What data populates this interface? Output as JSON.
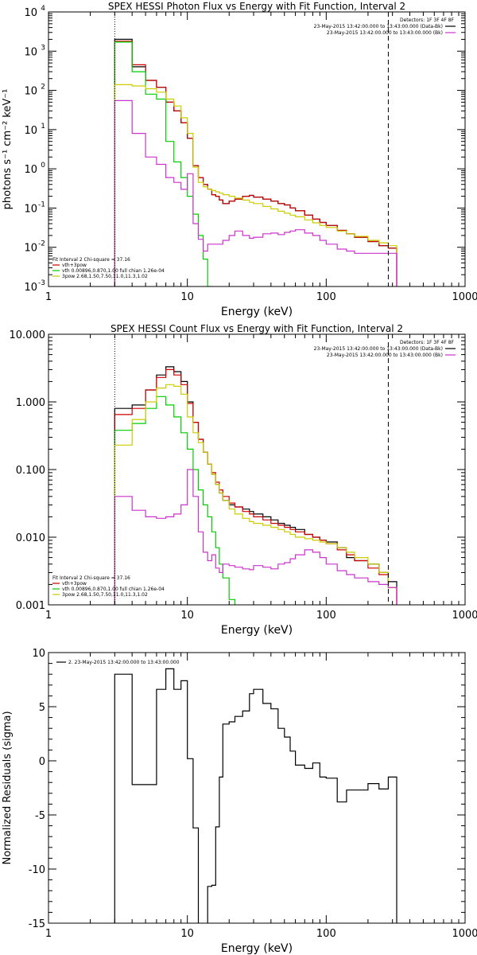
{
  "chart_data": [
    {
      "type": "line",
      "title": "SPEX HESSI Photon Flux vs Energy with Fit Function, Interval 2",
      "xlabel": "Energy (keV)",
      "ylabel": "photons s⁻¹ cm⁻² keV⁻¹",
      "xscale": "log",
      "yscale": "log",
      "xlim": [
        1,
        1000
      ],
      "ylim": [
        0.001,
        10000
      ],
      "xticks": [
        {
          "v": 1,
          "label": "1"
        },
        {
          "v": 10,
          "label": "10"
        },
        {
          "v": 100,
          "label": "100"
        },
        {
          "v": 1000,
          "label": "1000"
        }
      ],
      "yticks": [
        {
          "v": 0.001,
          "label": "10",
          "sup": "-3"
        },
        {
          "v": 0.01,
          "label": "10",
          "sup": "-2"
        },
        {
          "v": 0.1,
          "label": "10",
          "sup": "-1"
        },
        {
          "v": 1,
          "label": "10",
          "sup": "0"
        },
        {
          "v": 10,
          "label": "10",
          "sup": "1"
        },
        {
          "v": 100,
          "label": "10",
          "sup": "2"
        },
        {
          "v": 1000,
          "label": "10",
          "sup": "3"
        },
        {
          "v": 10000,
          "label": "10",
          "sup": "4"
        }
      ],
      "vlines": [
        {
          "x": 3,
          "style": "dotted"
        },
        {
          "x": 280,
          "style": "dashed"
        }
      ],
      "legend_top": {
        "header": "Detectors: 1F 3F 4F 8F",
        "entries": [
          {
            "text": "23-May-2015 13:42:00.000 to 13:43:00.000 (Data-Bk)",
            "color": "#000000"
          },
          {
            "text": "23-May-2015 13:42:00.000 to 13:43:00.000 (Bk)",
            "color": "#cc33cc"
          }
        ]
      },
      "legend_bottom": {
        "header": "Fit Interval 2   Chi-square = 37.16",
        "entries": [
          {
            "text": "vth+3pow",
            "color": "#cc0000"
          },
          {
            "text": "vth 0.00896,0.870,1.00  full chian 1.26e-04",
            "color": "#00cc00"
          },
          {
            "text": "3pow 2.68,1.50,7.50,11.0,11.3,1.02",
            "color": "#cccc00"
          }
        ]
      },
      "series": [
        {
          "color": "#000000",
          "x": [
            3,
            4,
            5,
            6,
            7,
            8,
            9,
            10,
            11,
            12,
            13,
            14,
            15,
            16,
            17,
            18,
            20,
            22,
            25,
            28,
            30,
            35,
            40,
            45,
            50,
            55,
            60,
            70,
            80,
            90,
            100,
            120,
            140,
            160,
            200,
            240,
            280
          ],
          "y": [
            2000,
            400,
            180,
            120,
            50,
            30,
            15,
            6,
            1.2,
            0.6,
            0.4,
            0.3,
            0.22,
            0.2,
            0.16,
            0.13,
            0.15,
            0.17,
            0.2,
            0.21,
            0.19,
            0.17,
            0.15,
            0.13,
            0.12,
            0.1,
            0.085,
            0.066,
            0.052,
            0.043,
            0.036,
            0.027,
            0.022,
            0.018,
            0.014,
            0.011,
            0.0095
          ]
        },
        {
          "color": "#cc0000",
          "x": [
            3,
            4,
            5,
            6,
            7,
            8,
            9,
            10,
            11,
            12,
            13,
            14,
            15,
            16,
            17,
            18,
            20,
            22,
            25,
            28,
            30,
            35,
            40,
            45,
            50,
            55,
            60,
            70,
            80,
            90,
            100,
            120,
            140,
            160,
            200,
            240,
            280
          ],
          "y": [
            1800,
            450,
            180,
            120,
            50,
            30,
            15,
            6,
            1.2,
            0.6,
            0.4,
            0.3,
            0.22,
            0.2,
            0.16,
            0.13,
            0.15,
            0.17,
            0.2,
            0.21,
            0.19,
            0.17,
            0.15,
            0.13,
            0.12,
            0.1,
            0.085,
            0.066,
            0.052,
            0.043,
            0.036,
            0.027,
            0.022,
            0.018,
            0.014,
            0.011,
            0.0095
          ]
        },
        {
          "color": "#00cc00",
          "x": [
            3,
            4,
            5,
            6,
            7,
            8,
            9,
            10,
            11,
            12,
            13,
            14,
            15
          ],
          "y": [
            1700,
            300,
            80,
            60,
            5,
            1.5,
            0.6,
            0.2,
            0.07,
            0.02,
            0.005,
            0.001,
            0.0008
          ]
        },
        {
          "color": "#cccc00",
          "x": [
            3,
            4,
            5,
            6,
            7,
            8,
            9,
            10,
            11,
            12,
            13,
            14,
            15,
            16,
            17,
            18,
            20,
            22,
            25,
            28,
            30,
            35,
            40,
            45,
            50,
            55,
            60,
            70,
            80,
            90,
            100,
            120,
            140,
            160,
            200,
            240,
            280
          ],
          "y": [
            140,
            130,
            110,
            90,
            60,
            40,
            20,
            8,
            1.1,
            0.45,
            0.35,
            0.3,
            0.28,
            0.26,
            0.24,
            0.22,
            0.2,
            0.18,
            0.16,
            0.14,
            0.13,
            0.11,
            0.095,
            0.083,
            0.074,
            0.066,
            0.06,
            0.05,
            0.042,
            0.036,
            0.032,
            0.026,
            0.022,
            0.019,
            0.015,
            0.013,
            0.011
          ]
        },
        {
          "color": "#cc33cc",
          "x": [
            3,
            4,
            5,
            6,
            7,
            8,
            9,
            10,
            11,
            12,
            13,
            14,
            15,
            16,
            17,
            18,
            20,
            22,
            25,
            28,
            30,
            35,
            40,
            45,
            50,
            55,
            60,
            70,
            80,
            90,
            100,
            120,
            140,
            160,
            200,
            240,
            280
          ],
          "y": [
            55,
            8,
            2,
            1.3,
            0.6,
            0.45,
            0.3,
            0.75,
            0.04,
            0.016,
            0.008,
            0.012,
            0.012,
            0.012,
            0.012,
            0.015,
            0.02,
            0.026,
            0.02,
            0.017,
            0.018,
            0.022,
            0.023,
            0.021,
            0.024,
            0.026,
            0.028,
            0.023,
            0.02,
            0.015,
            0.012,
            0.009,
            0.008,
            0.007,
            0.007,
            0.007,
            0.007
          ]
        }
      ]
    },
    {
      "type": "line",
      "title": "SPEX HESSI Count Flux vs Energy with Fit Function, Interval 2",
      "xlabel": "Energy (keV)",
      "ylabel": "",
      "xscale": "log",
      "yscale": "log",
      "xlim": [
        1,
        1000
      ],
      "ylim": [
        0.001,
        10
      ],
      "xticks": [
        {
          "v": 1,
          "label": "1"
        },
        {
          "v": 10,
          "label": "10"
        },
        {
          "v": 100,
          "label": "100"
        },
        {
          "v": 1000,
          "label": "1000"
        }
      ],
      "yticks": [
        {
          "v": 0.001,
          "label": "0.001"
        },
        {
          "v": 0.01,
          "label": "0.010"
        },
        {
          "v": 0.1,
          "label": "0.100"
        },
        {
          "v": 1,
          "label": "1.000"
        },
        {
          "v": 10,
          "label": "10.000"
        }
      ],
      "vlines": [
        {
          "x": 3,
          "style": "dotted"
        },
        {
          "x": 280,
          "style": "dashed"
        }
      ],
      "legend_top": {
        "header": "Detectors: 1F 3F 4F 8F",
        "entries": [
          {
            "text": "23-May-2015 13:42:00.000 to 13:43:00.000 (Data-Bk)",
            "color": "#000000"
          },
          {
            "text": "23-May-2015 13:42:00.000 to 13:43:00.000 (Bk)",
            "color": "#cc33cc"
          }
        ]
      },
      "legend_bottom": {
        "header": "Fit Interval 2   Chi-square = 37.16",
        "entries": [
          {
            "text": "vth+3pow",
            "color": "#cc0000"
          },
          {
            "text": "vth 0.00896,0.870,1.00  full chian 1.26e-04",
            "color": "#00cc00"
          },
          {
            "text": "3pow 2.68,1.50,7.50,11.0,11.3,1.02",
            "color": "#cccc00"
          }
        ]
      },
      "series": [
        {
          "color": "#000000",
          "x": [
            3,
            4,
            5,
            6,
            7,
            8,
            9,
            10,
            11,
            12,
            13,
            14,
            15,
            16,
            17,
            18,
            20,
            22,
            25,
            28,
            30,
            35,
            40,
            45,
            50,
            55,
            60,
            70,
            80,
            90,
            100,
            120,
            140,
            160,
            200,
            240,
            280
          ],
          "y": [
            0.8,
            0.9,
            1.5,
            2.5,
            3.3,
            2.8,
            2.0,
            1.0,
            0.5,
            0.28,
            0.18,
            0.12,
            0.085,
            0.06,
            0.045,
            0.035,
            0.03,
            0.028,
            0.026,
            0.024,
            0.022,
            0.02,
            0.018,
            0.016,
            0.015,
            0.014,
            0.013,
            0.011,
            0.01,
            0.009,
            0.0085,
            0.007,
            0.005,
            0.0045,
            0.004,
            0.003,
            0.0022
          ]
        },
        {
          "color": "#cc0000",
          "x": [
            3,
            4,
            5,
            6,
            7,
            8,
            9,
            10,
            11,
            12,
            13,
            14,
            15,
            16,
            17,
            18,
            20,
            22,
            25,
            28,
            30,
            35,
            40,
            45,
            50,
            55,
            60,
            70,
            80,
            90,
            100,
            120,
            140,
            160,
            200,
            240,
            280
          ],
          "y": [
            0.65,
            0.8,
            1.5,
            2.3,
            3.0,
            2.5,
            1.8,
            0.95,
            0.5,
            0.28,
            0.18,
            0.12,
            0.09,
            0.065,
            0.05,
            0.04,
            0.032,
            0.028,
            0.024,
            0.022,
            0.02,
            0.018,
            0.016,
            0.015,
            0.014,
            0.013,
            0.012,
            0.011,
            0.01,
            0.009,
            0.008,
            0.0065,
            0.0055,
            0.0045,
            0.0035,
            0.0028,
            0.0018
          ]
        },
        {
          "color": "#00cc00",
          "x": [
            3,
            4,
            5,
            6,
            7,
            8,
            9,
            10,
            11,
            12,
            13,
            14,
            15,
            16,
            17,
            18,
            20,
            22
          ],
          "y": [
            0.38,
            0.48,
            0.8,
            1.2,
            0.9,
            0.6,
            0.35,
            0.2,
            0.1,
            0.05,
            0.03,
            0.02,
            0.012,
            0.007,
            0.004,
            0.0025,
            0.0012,
            0.0008
          ]
        },
        {
          "color": "#cccc00",
          "x": [
            3,
            4,
            5,
            6,
            7,
            8,
            9,
            10,
            11,
            12,
            13,
            14,
            15,
            16,
            17,
            18,
            20,
            22,
            25,
            28,
            30,
            35,
            40,
            45,
            50,
            55,
            60,
            70,
            80,
            90,
            100,
            120,
            140,
            160,
            200,
            240,
            280
          ],
          "y": [
            0.23,
            0.55,
            1.0,
            1.6,
            1.8,
            1.7,
            1.3,
            0.6,
            0.35,
            0.25,
            0.18,
            0.12,
            0.085,
            0.06,
            0.045,
            0.035,
            0.026,
            0.022,
            0.019,
            0.017,
            0.016,
            0.015,
            0.014,
            0.013,
            0.012,
            0.011,
            0.01,
            0.0095,
            0.009,
            0.0085,
            0.008,
            0.007,
            0.006,
            0.005,
            0.004,
            0.003,
            0.0018
          ]
        },
        {
          "color": "#cc33cc",
          "x": [
            3,
            4,
            5,
            6,
            7,
            8,
            9,
            10,
            11,
            12,
            13,
            14,
            15,
            16,
            17,
            18,
            20,
            22,
            25,
            28,
            30,
            35,
            40,
            45,
            50,
            55,
            60,
            70,
            80,
            90,
            100,
            120,
            140,
            160,
            200,
            240,
            280
          ],
          "y": [
            0.04,
            0.025,
            0.02,
            0.019,
            0.02,
            0.022,
            0.03,
            0.1,
            0.04,
            0.012,
            0.006,
            0.0045,
            0.0055,
            0.0035,
            0.003,
            0.004,
            0.0038,
            0.0036,
            0.0034,
            0.0033,
            0.0038,
            0.0036,
            0.0034,
            0.004,
            0.0042,
            0.0048,
            0.0055,
            0.0065,
            0.006,
            0.005,
            0.004,
            0.0032,
            0.0028,
            0.0025,
            0.0022,
            0.002,
            0.0018
          ]
        }
      ]
    },
    {
      "type": "line",
      "title": "",
      "xlabel": "Energy (keV)",
      "ylabel": "Normalized Residuals (sigma)",
      "xscale": "log",
      "yscale": "linear",
      "xlim": [
        1,
        1000
      ],
      "ylim": [
        -15,
        10
      ],
      "xticks": [
        {
          "v": 1,
          "label": "1"
        },
        {
          "v": 10,
          "label": "10"
        },
        {
          "v": 100,
          "label": "100"
        },
        {
          "v": 1000,
          "label": "1000"
        }
      ],
      "yticks": [
        {
          "v": -15,
          "label": "-15"
        },
        {
          "v": -10,
          "label": "-10"
        },
        {
          "v": -5,
          "label": "-5"
        },
        {
          "v": 0,
          "label": "0"
        },
        {
          "v": 5,
          "label": "5"
        },
        {
          "v": 10,
          "label": "10"
        }
      ],
      "vlines": [],
      "legend_top": {
        "header": "",
        "entries": [
          {
            "text": "2. 23-May-2015 13:42:00.000 to 13:43:00.000",
            "color": "#000000"
          }
        ]
      },
      "legend_bottom": {
        "header": "",
        "entries": []
      },
      "series": [
        {
          "color": "#000000",
          "x": [
            3,
            4,
            5,
            6,
            7,
            8,
            9,
            10,
            11,
            12,
            13,
            14,
            15,
            16,
            17,
            18,
            20,
            22,
            25,
            28,
            30,
            35,
            40,
            45,
            50,
            55,
            60,
            70,
            80,
            90,
            100,
            120,
            140,
            160,
            200,
            240,
            280
          ],
          "y": [
            8,
            -2.2,
            -2.2,
            6.6,
            8.5,
            6.6,
            7.4,
            0.2,
            -6.2,
            -15.5,
            -15.2,
            -11.6,
            -11.5,
            -6.1,
            -1.5,
            3.4,
            3.6,
            4.1,
            4.6,
            6.2,
            6.6,
            5.3,
            4.8,
            3.0,
            2.2,
            0.9,
            -0.4,
            -0.7,
            -0.2,
            -1.5,
            -1.6,
            -3.8,
            -2.7,
            -2.7,
            -2.1,
            -2.6,
            -1.5
          ]
        }
      ]
    }
  ]
}
